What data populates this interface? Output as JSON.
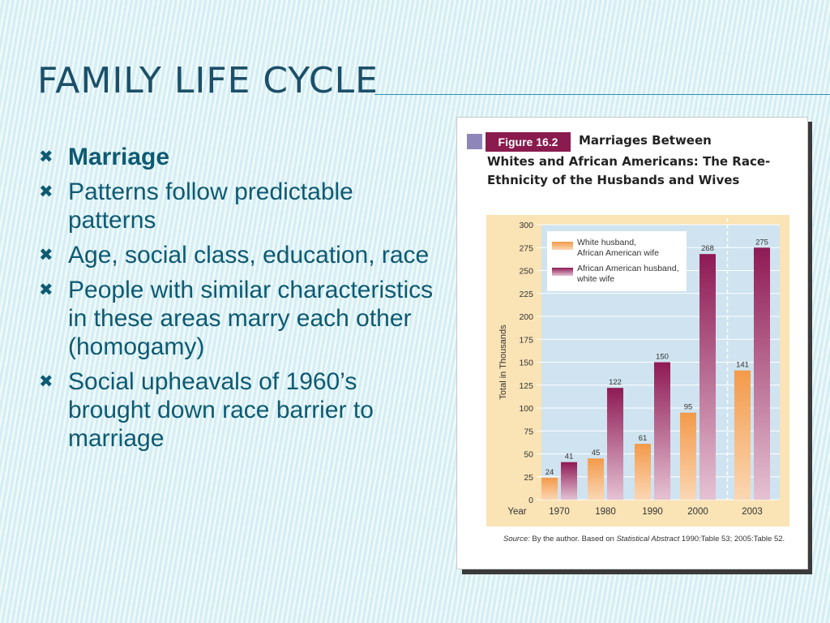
{
  "slide": {
    "title": "FAMILY LIFE CYCLE",
    "bullets": [
      "Marriage",
      "Patterns follow predictable patterns",
      "Age, social class, education, race",
      "People with similar characteristics in these areas marry each other (homogamy)",
      "Social upheavals of 1960’s brought down race barrier to marriage"
    ],
    "bullet_marker": "✖"
  },
  "figure": {
    "label": "Figure 16.2",
    "title_line1": "Marriages Between",
    "title_rest": "Whites and African Americans: The Race-Ethnicity of the Husbands and Wives",
    "source_label": "Source:",
    "source_pre": "By the author. Based on",
    "source_italic": "Statistical Abstract",
    "source_post": "1990:Table 53; 2005:Table 52."
  },
  "chart_data": {
    "type": "bar",
    "x_label": "Year",
    "ylabel": "Total in Thousands",
    "categories": [
      "1970",
      "1980",
      "1990",
      "2000",
      "2003"
    ],
    "ylim": [
      0,
      300
    ],
    "yticks": [
      0,
      25,
      50,
      75,
      100,
      125,
      150,
      175,
      200,
      225,
      250,
      275,
      300
    ],
    "series": [
      {
        "name": "White husband, African American wife",
        "values": [
          24,
          45,
          61,
          95,
          141
        ],
        "color": "#f39a4a"
      },
      {
        "name": "African American husband, white wife",
        "values": [
          41,
          122,
          150,
          268,
          275
        ],
        "color": "#8e1a55"
      }
    ],
    "legend_position": "top-left",
    "grid": true,
    "data_labels": true,
    "colors": {
      "panel_frame": "#fae3b5",
      "plot_bg": "#cfe3f0",
      "title_bar": "#8a1b4e"
    }
  }
}
